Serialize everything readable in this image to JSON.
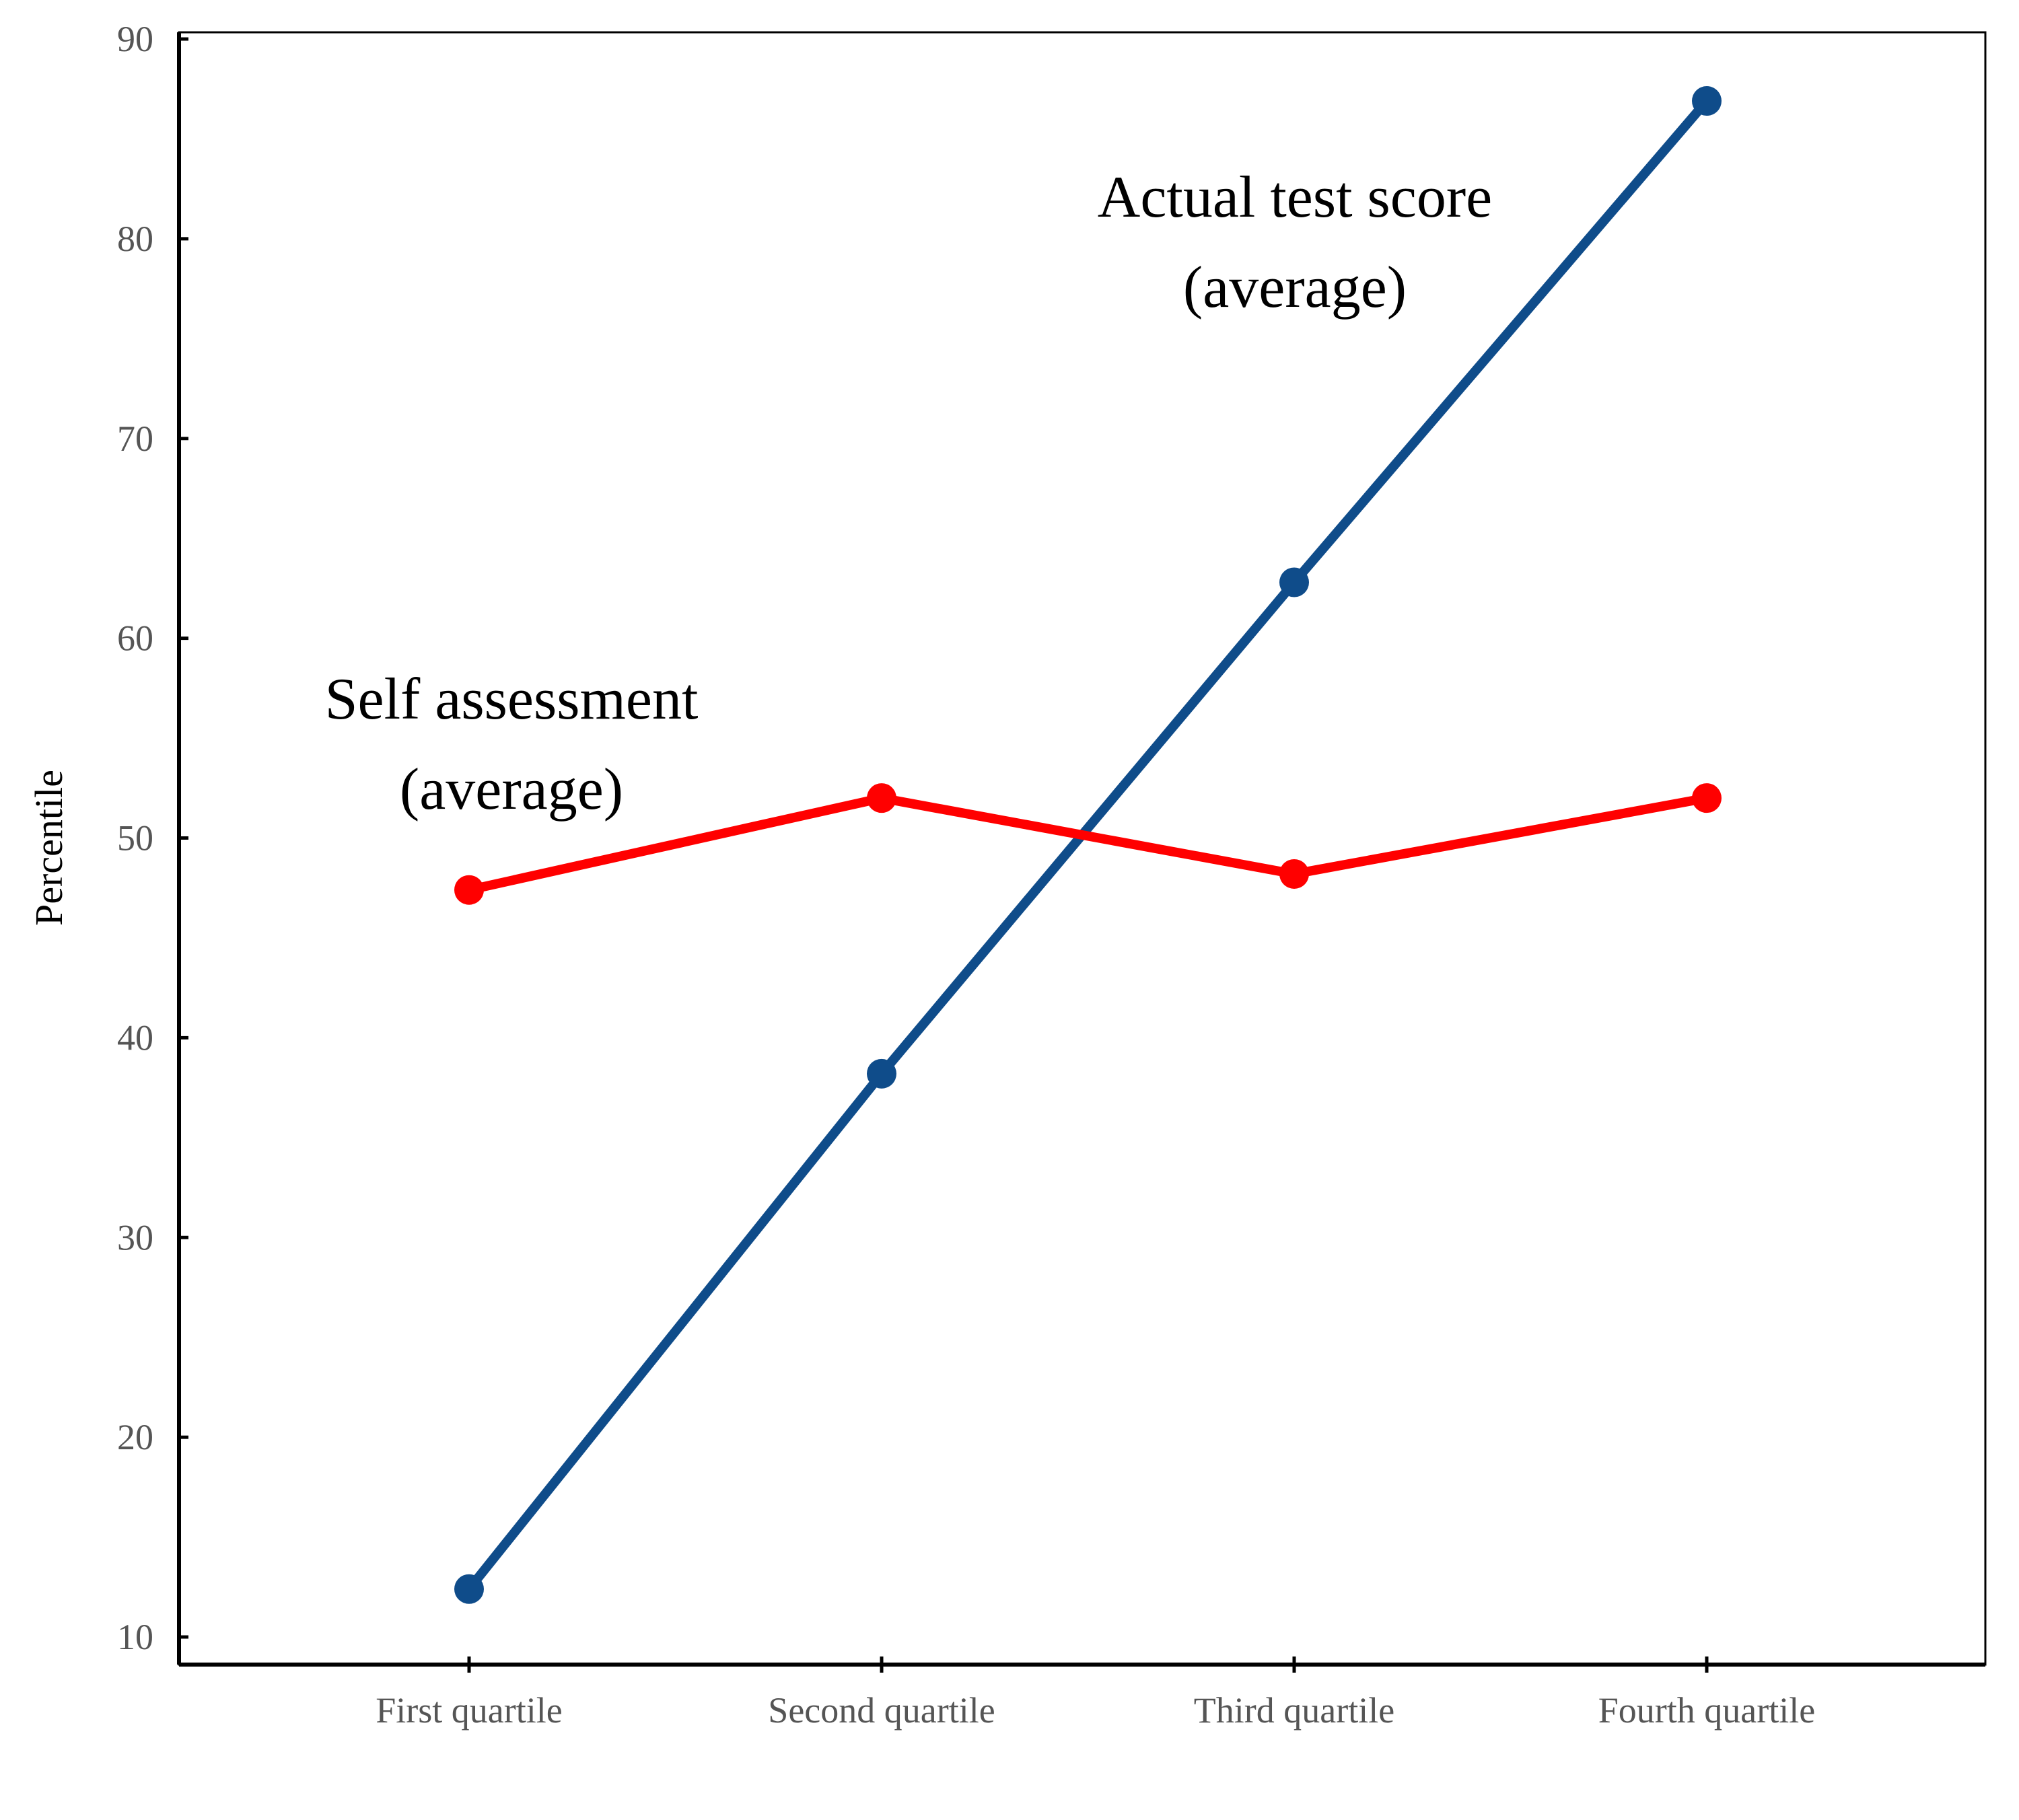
{
  "chart_data": {
    "type": "line",
    "title": "",
    "xlabel": "",
    "ylabel": "Percentile",
    "ylim": [
      8,
      91
    ],
    "yticks": [
      10,
      20,
      30,
      40,
      50,
      60,
      70,
      80,
      90
    ],
    "categories": [
      "First quartile",
      "Second quartile",
      "Third quartile",
      "Fourth quartile"
    ],
    "series": [
      {
        "name": "Actual test score (average)",
        "color": "#0f4c8a",
        "values": [
          12.4,
          38.2,
          62.8,
          86.9
        ]
      },
      {
        "name": "Self assessment (average)",
        "color": "#ff0000",
        "values": [
          47.4,
          52.0,
          48.2,
          52.0
        ]
      }
    ],
    "annotations": [
      {
        "series": 0,
        "lines": [
          "Actual test score",
          "(average)"
        ]
      },
      {
        "series": 1,
        "lines": [
          "Self assessment",
          "(average)"
        ]
      }
    ],
    "grid": false,
    "legend": "none"
  }
}
